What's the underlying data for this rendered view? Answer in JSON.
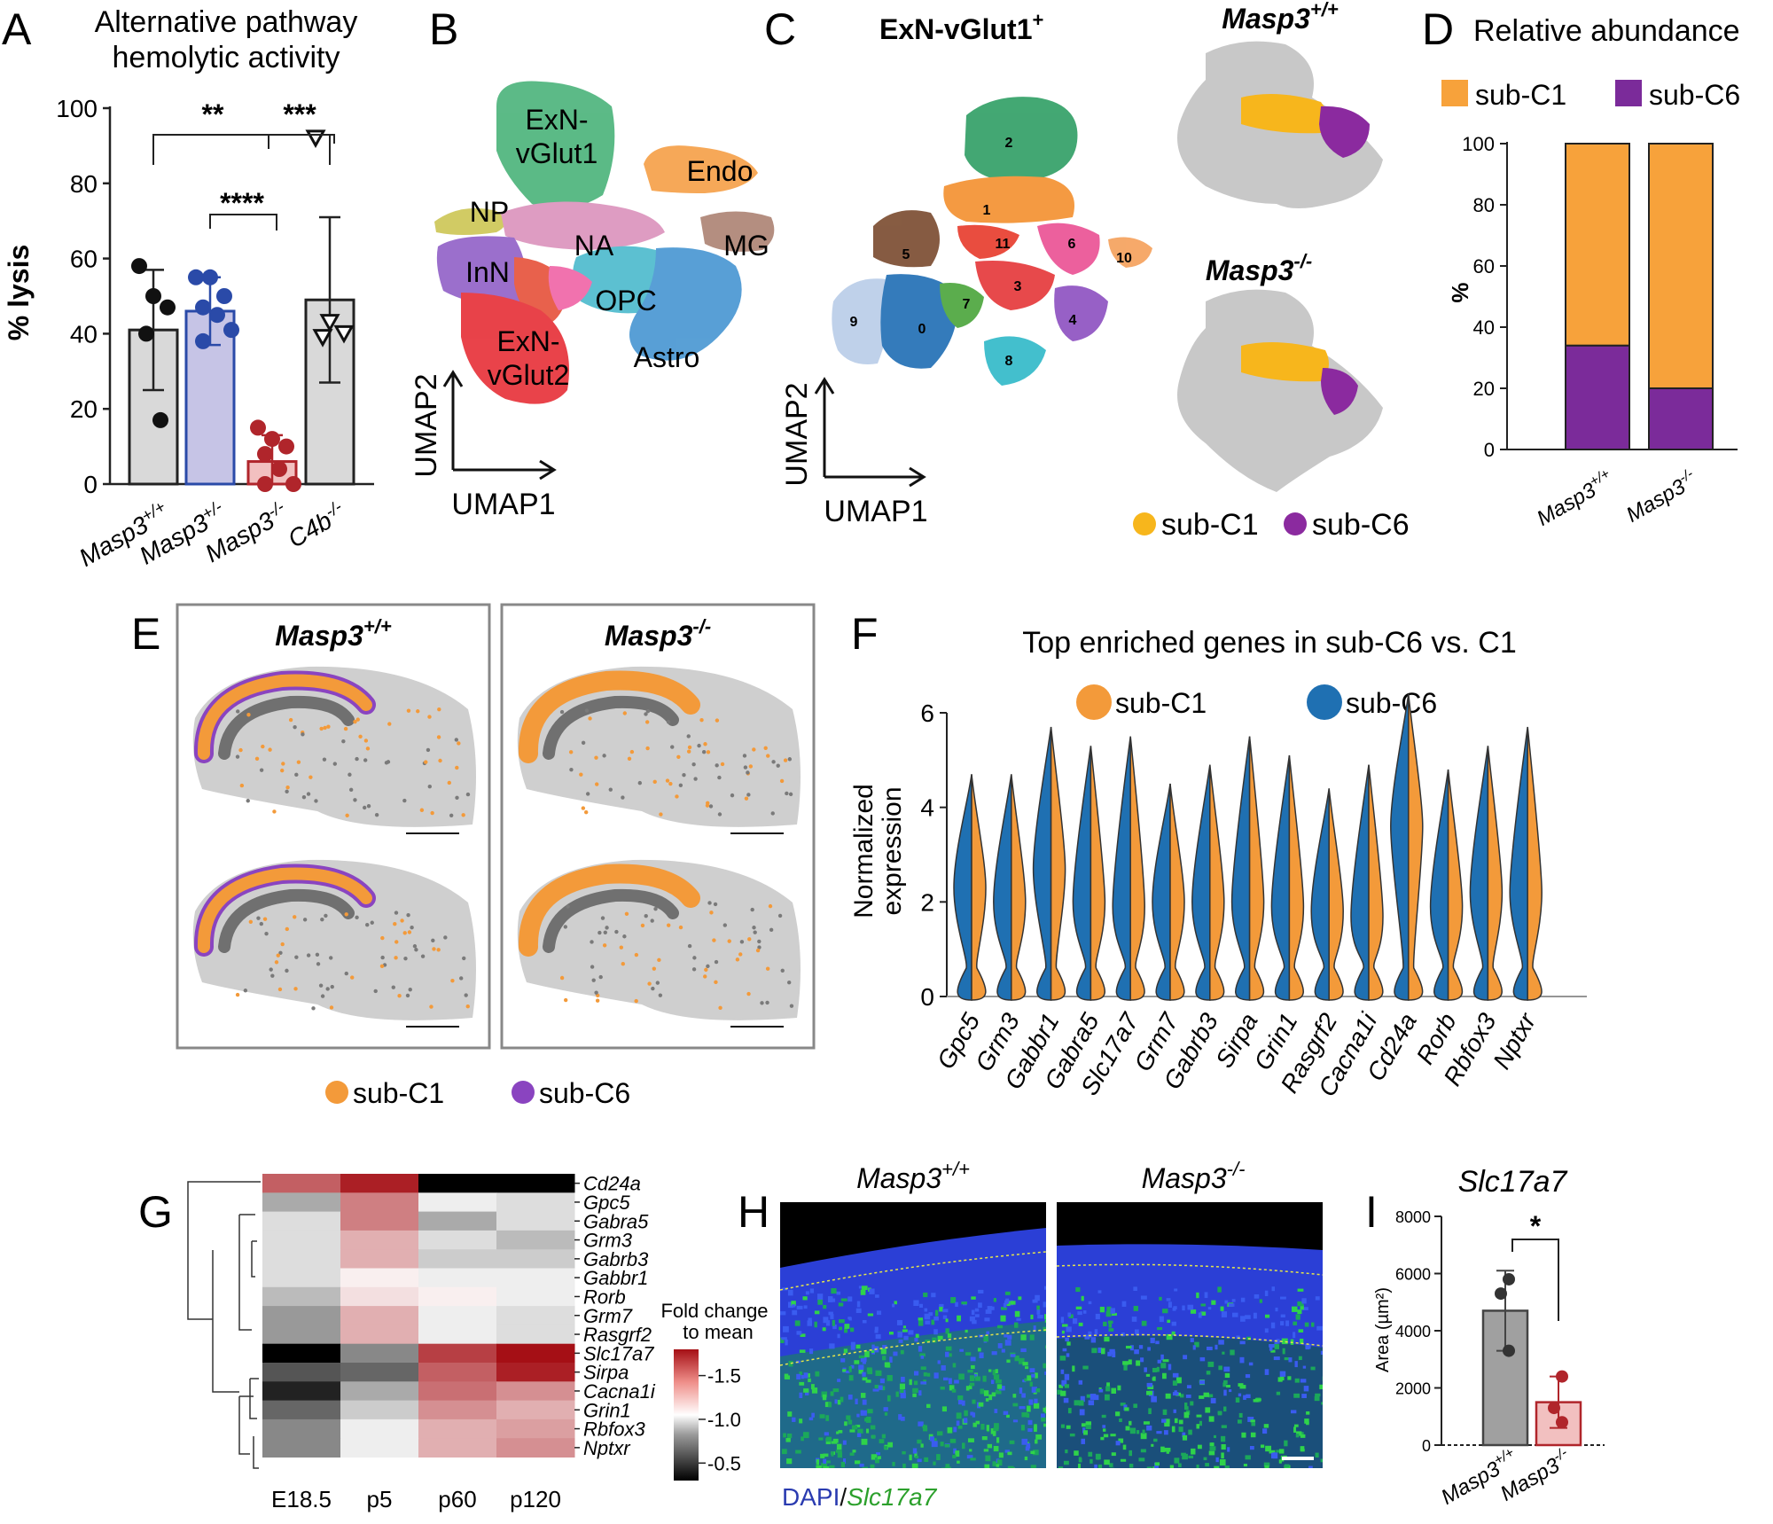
{
  "panels": {
    "A": {
      "letter": "A",
      "title_line1": "Alternative pathway",
      "title_line2": "hemolytic activity",
      "ylabel": "% lysis",
      "yticks": [
        "0",
        "20",
        "40",
        "60",
        "80",
        "100"
      ],
      "sig_top_left": "**",
      "sig_top_right": "***",
      "sig_mid": "****",
      "genotypes": [
        {
          "base": "Masp3",
          "sup": "+/+"
        },
        {
          "base": "Masp3",
          "sup": "+/-"
        },
        {
          "base": "Masp3",
          "sup": "-/-"
        },
        {
          "base": "C4b",
          "sup": "-/-"
        }
      ]
    },
    "B": {
      "letter": "B",
      "clusters": [
        "ExN-",
        "vGlut1",
        "Endo",
        "NP",
        "NA",
        "MG",
        "InN",
        "OPC",
        "Astro",
        "ExN-",
        "vGlut2"
      ],
      "xaxis": "UMAP1",
      "yaxis": "UMAP2"
    },
    "C": {
      "letter": "C",
      "title_base": "ExN-vGlut1",
      "title_sup": "+",
      "cluster_ids": [
        "2",
        "1",
        "5",
        "11",
        "6",
        "10",
        "3",
        "9",
        "0",
        "7",
        "4",
        "8"
      ],
      "wt_base": "Masp3",
      "wt_sup": "+/+",
      "ko_base": "Masp3",
      "ko_sup": "-/-",
      "xaxis": "UMAP1",
      "yaxis": "UMAP2",
      "legend_c1": "sub-C1",
      "legend_c6": "sub-C6"
    },
    "D": {
      "letter": "D",
      "title": "Relative abundance",
      "legend_c1": "sub-C1",
      "legend_c6": "sub-C6",
      "ylabel": "%",
      "yticks": [
        "0",
        "20",
        "40",
        "60",
        "80",
        "100"
      ],
      "xlabels": [
        {
          "base": "Masp3",
          "sup": "+/+"
        },
        {
          "base": "Masp3",
          "sup": "-/-"
        }
      ]
    },
    "E": {
      "letter": "E",
      "wt_base": "Masp3",
      "wt_sup": "+/+",
      "ko_base": "Masp3",
      "ko_sup": "-/-",
      "legend_c1": "sub-C1",
      "legend_c6": "sub-C6"
    },
    "F": {
      "letter": "F",
      "title": "Top enriched genes in sub-C6 vs. C1",
      "legend_c1": "sub-C1",
      "legend_c6": "sub-C6",
      "ylabel1": "Normalized",
      "ylabel2": "expression",
      "yticks": [
        "0",
        "2",
        "4",
        "6"
      ]
    },
    "G": {
      "letter": "G",
      "legend_title1": "Fold change",
      "legend_title2": "to mean",
      "legend_ticks": [
        "1.5",
        "1.0",
        "0.5"
      ]
    },
    "H": {
      "letter": "H",
      "wt_base": "Masp3",
      "wt_sup": "+/+",
      "ko_base": "Masp3",
      "ko_sup": "-/-",
      "stain_dapi": "DAPI",
      "stain_sep": "/",
      "stain_gene": "Slc17a7"
    },
    "I": {
      "letter": "I",
      "title": "Slc17a7",
      "ylabel": "Area (µm²)",
      "yticks": [
        "0",
        "2000",
        "4000",
        "6000",
        "8000"
      ],
      "sig": "*",
      "xlabels": [
        {
          "base": "Masp3",
          "sup": "+/+"
        },
        {
          "base": "Masp3",
          "sup": "-/-"
        }
      ]
    }
  },
  "chart_data": [
    {
      "panel": "A",
      "type": "bar",
      "title": "Alternative pathway hemolytic activity",
      "ylabel": "% lysis",
      "ylim": [
        0,
        100
      ],
      "categories": [
        "Masp3+/+",
        "Masp3+/-",
        "Masp3-/-",
        "C4b-/-"
      ],
      "values": [
        41,
        46,
        6,
        49
      ],
      "sd": [
        16,
        9,
        7,
        22
      ],
      "points": [
        [
          58,
          50,
          47,
          40,
          17
        ],
        [
          55,
          55,
          50,
          47,
          45,
          41,
          38
        ],
        [
          15,
          12,
          10,
          8,
          4,
          0,
          0
        ],
        [
          92,
          43,
          40,
          39
        ]
      ],
      "colors": [
        "#d9d9d9",
        "#c6c4e6",
        "#f2c0c0",
        "#d9d9d9"
      ],
      "point_colors": [
        "#111111",
        "#2a4aa8",
        "#b0252b",
        "#111111"
      ],
      "significance": [
        "**",
        "***",
        "****"
      ]
    },
    {
      "panel": "D",
      "type": "bar",
      "stacked": true,
      "title": "Relative abundance",
      "ylabel": "%",
      "ylim": [
        0,
        100
      ],
      "categories": [
        "Masp3+/+",
        "Masp3-/-"
      ],
      "series": [
        {
          "name": "sub-C6",
          "values": [
            34,
            20
          ],
          "color": "#7b2b9a"
        },
        {
          "name": "sub-C1",
          "values": [
            66,
            80
          ],
          "color": "#f7a23b"
        }
      ]
    },
    {
      "panel": "F",
      "type": "violin",
      "title": "Top enriched genes in sub-C6 vs. C1",
      "ylabel": "Normalized expression",
      "ylim": [
        0,
        6
      ],
      "categories": [
        "Gpc5",
        "Grm3",
        "Gabbr1",
        "Gabra5",
        "Slc17a7",
        "Grm7",
        "Gabrb3",
        "Sirpa",
        "Grin1",
        "Rasgrf2",
        "Cacna1i",
        "Cd24a",
        "Rorb",
        "Rbfox3",
        "Nptxr"
      ],
      "series": [
        {
          "name": "sub-C6",
          "color": "#1f70b2",
          "median": [
            2.3,
            2.0,
            2.7,
            2.0,
            1.9,
            2.0,
            2.0,
            2.0,
            1.9,
            1.8,
            1.7,
            3.6,
            1.9,
            2.2,
            2.2
          ],
          "max": [
            4.7,
            4.7,
            5.7,
            5.3,
            5.5,
            4.5,
            4.9,
            5.5,
            5.1,
            4.4,
            4.9,
            6.4,
            4.8,
            5.3,
            5.7
          ]
        },
        {
          "name": "sub-C1",
          "color": "#f39a3a",
          "median": [
            2.2,
            2.0,
            2.6,
            1.9,
            1.8,
            1.9,
            2.0,
            1.9,
            1.8,
            1.7,
            1.7,
            3.6,
            1.8,
            2.1,
            2.1
          ],
          "max": [
            4.7,
            4.7,
            5.7,
            5.3,
            5.5,
            4.5,
            4.9,
            5.5,
            5.1,
            4.4,
            4.9,
            6.4,
            4.8,
            5.3,
            5.7
          ]
        }
      ]
    },
    {
      "panel": "G",
      "type": "heatmap",
      "x": [
        "E18.5",
        "p5",
        "p60",
        "p120"
      ],
      "y": [
        "Cd24a",
        "Gpc5",
        "Gabra5",
        "Grm3",
        "Gabrb3",
        "Gabbr1",
        "Rorb",
        "Grm7",
        "Rasgrf2",
        "Slc17a7",
        "Sirpa",
        "Cacna1i",
        "Grin1",
        "Rbfox3",
        "Nptxr"
      ],
      "values": [
        [
          1.55,
          1.75,
          0.2,
          0.2
        ],
        [
          0.8,
          1.45,
          1.0,
          0.95
        ],
        [
          0.95,
          1.45,
          0.8,
          0.95
        ],
        [
          0.95,
          1.3,
          0.95,
          0.85
        ],
        [
          0.95,
          1.3,
          0.9,
          0.9
        ],
        [
          0.95,
          1.1,
          1.0,
          1.0
        ],
        [
          0.85,
          1.15,
          1.1,
          1.0
        ],
        [
          0.75,
          1.3,
          1.0,
          0.95
        ],
        [
          0.75,
          1.3,
          1.0,
          0.95
        ],
        [
          0.2,
          0.7,
          1.65,
          1.8
        ],
        [
          0.55,
          0.6,
          1.55,
          1.75
        ],
        [
          0.4,
          0.8,
          1.5,
          1.4
        ],
        [
          0.6,
          0.9,
          1.4,
          1.3
        ],
        [
          0.7,
          1.0,
          1.3,
          1.35
        ],
        [
          0.7,
          1.0,
          1.3,
          1.4
        ]
      ],
      "zlabel": "Fold change to mean",
      "zlim": [
        0.3,
        1.8
      ]
    },
    {
      "panel": "I",
      "type": "bar",
      "title": "Slc17a7",
      "ylabel": "Area (µm²)",
      "ylim": [
        0,
        8000
      ],
      "categories": [
        "Masp3+/+",
        "Masp3-/-"
      ],
      "values": [
        4700,
        1500
      ],
      "sd": [
        1400,
        900
      ],
      "points": [
        [
          5800,
          5300,
          3300
        ],
        [
          2400,
          1300,
          800
        ]
      ],
      "colors": [
        "#a0a0a0",
        "#f2c0c0"
      ],
      "point_colors": [
        "#333333",
        "#b0252b"
      ],
      "significance": "*"
    }
  ]
}
